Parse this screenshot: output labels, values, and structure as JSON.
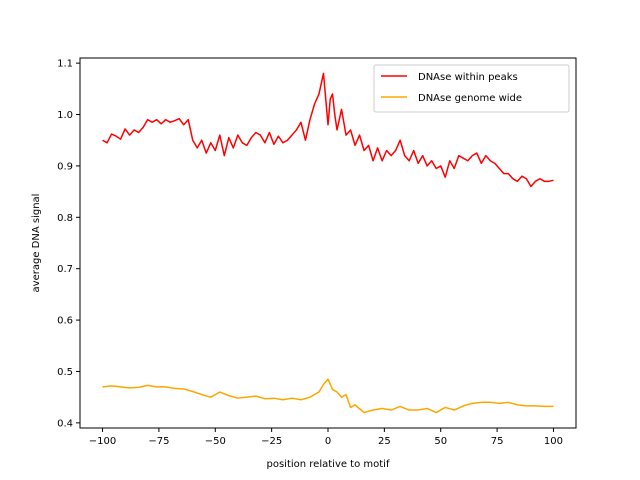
{
  "chart_data": {
    "type": "line",
    "xlabel": "position relative to motif",
    "ylabel": "average DNA signal",
    "xlim": [
      -110,
      110
    ],
    "ylim": [
      0.39,
      1.11
    ],
    "xticks": [
      -100,
      -75,
      -50,
      -25,
      0,
      25,
      50,
      75,
      100
    ],
    "xtick_labels": [
      "−100",
      "−75",
      "−50",
      "−25",
      "0",
      "25",
      "50",
      "75",
      "100"
    ],
    "yticks": [
      0.4,
      0.5,
      0.6,
      0.7,
      0.8,
      0.9,
      1.0,
      1.1
    ],
    "ytick_labels": [
      "0.4",
      "0.5",
      "0.6",
      "0.7",
      "0.8",
      "0.9",
      "1.0",
      "1.1"
    ],
    "grid": false,
    "legend_position": "top-right",
    "series": [
      {
        "name": "DNAse within peaks",
        "color": "#ff0000",
        "x": [
          -100,
          -98,
          -96,
          -94,
          -92,
          -90,
          -88,
          -86,
          -84,
          -82,
          -80,
          -78,
          -76,
          -74,
          -72,
          -70,
          -68,
          -66,
          -64,
          -62,
          -60,
          -58,
          -56,
          -54,
          -52,
          -50,
          -48,
          -46,
          -44,
          -42,
          -40,
          -38,
          -36,
          -34,
          -32,
          -30,
          -28,
          -26,
          -24,
          -22,
          -20,
          -18,
          -16,
          -14,
          -12,
          -10,
          -8,
          -6,
          -4,
          -3,
          -2,
          -1,
          0,
          1,
          2,
          3,
          4,
          6,
          8,
          10,
          12,
          14,
          16,
          18,
          20,
          22,
          24,
          26,
          28,
          30,
          32,
          34,
          36,
          38,
          40,
          42,
          44,
          46,
          48,
          50,
          52,
          54,
          56,
          58,
          60,
          62,
          64,
          66,
          68,
          70,
          72,
          74,
          76,
          78,
          80,
          82,
          84,
          86,
          88,
          90,
          92,
          94,
          96,
          98,
          100
        ],
        "values": [
          0.95,
          0.945,
          0.962,
          0.958,
          0.952,
          0.972,
          0.96,
          0.97,
          0.965,
          0.975,
          0.99,
          0.985,
          0.99,
          0.982,
          0.99,
          0.985,
          0.988,
          0.992,
          0.98,
          0.99,
          0.95,
          0.935,
          0.95,
          0.925,
          0.945,
          0.93,
          0.96,
          0.92,
          0.955,
          0.935,
          0.96,
          0.945,
          0.94,
          0.955,
          0.965,
          0.96,
          0.945,
          0.965,
          0.942,
          0.958,
          0.945,
          0.95,
          0.96,
          0.97,
          0.985,
          0.95,
          0.99,
          1.02,
          1.04,
          1.06,
          1.08,
          1.03,
          0.98,
          1.03,
          1.04,
          1.0,
          0.97,
          1.01,
          0.96,
          0.97,
          0.94,
          0.96,
          0.93,
          0.94,
          0.91,
          0.935,
          0.91,
          0.93,
          0.92,
          0.93,
          0.95,
          0.92,
          0.91,
          0.93,
          0.905,
          0.92,
          0.9,
          0.91,
          0.895,
          0.9,
          0.878,
          0.91,
          0.895,
          0.92,
          0.915,
          0.91,
          0.92,
          0.925,
          0.905,
          0.92,
          0.91,
          0.905,
          0.895,
          0.885,
          0.885,
          0.875,
          0.87,
          0.88,
          0.875,
          0.86,
          0.87,
          0.875,
          0.87,
          0.87,
          0.872
        ]
      },
      {
        "name": "DNAse genome wide",
        "color": "#ffa500",
        "x": [
          -100,
          -96,
          -92,
          -88,
          -84,
          -80,
          -76,
          -72,
          -68,
          -64,
          -60,
          -56,
          -52,
          -48,
          -44,
          -40,
          -36,
          -32,
          -28,
          -24,
          -20,
          -16,
          -12,
          -8,
          -4,
          -2,
          0,
          2,
          4,
          6,
          8,
          10,
          12,
          16,
          20,
          24,
          28,
          32,
          36,
          40,
          44,
          48,
          52,
          56,
          60,
          64,
          68,
          72,
          76,
          80,
          84,
          88,
          92,
          96,
          100
        ],
        "values": [
          0.47,
          0.472,
          0.47,
          0.468,
          0.469,
          0.473,
          0.47,
          0.47,
          0.467,
          0.466,
          0.461,
          0.455,
          0.45,
          0.46,
          0.453,
          0.448,
          0.45,
          0.452,
          0.447,
          0.448,
          0.445,
          0.448,
          0.445,
          0.45,
          0.46,
          0.475,
          0.485,
          0.465,
          0.46,
          0.45,
          0.455,
          0.43,
          0.435,
          0.42,
          0.425,
          0.428,
          0.425,
          0.432,
          0.425,
          0.425,
          0.428,
          0.42,
          0.43,
          0.425,
          0.433,
          0.438,
          0.44,
          0.44,
          0.438,
          0.44,
          0.435,
          0.433,
          0.433,
          0.432,
          0.432
        ]
      }
    ]
  }
}
